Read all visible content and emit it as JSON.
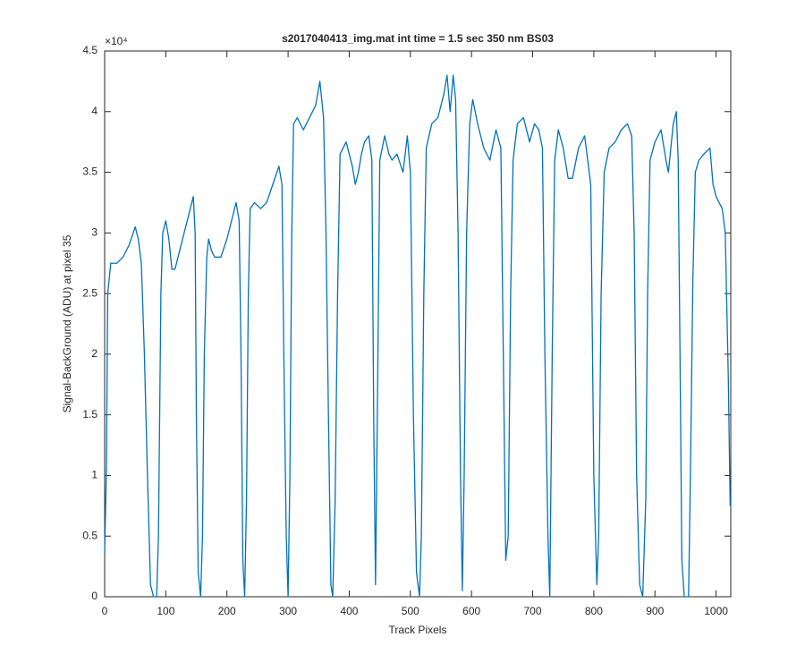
{
  "chart_data": {
    "type": "line",
    "title": "s2017040413_img.mat int time = 1.5 sec  350 nm BS03",
    "xlabel": "Track Pixels",
    "ylabel": "Signal-BackGround (ADU) at pixel 35",
    "y_exponent_label": "×10⁴",
    "xlim": [
      0,
      1024
    ],
    "ylim": [
      0,
      45000
    ],
    "xticks": [
      0,
      100,
      200,
      300,
      400,
      500,
      600,
      700,
      800,
      900,
      1000
    ],
    "yticks": [
      0,
      {
        "value": 5000,
        "label": "0.5"
      },
      {
        "value": 10000,
        "label": "1"
      },
      {
        "value": 15000,
        "label": "1.5"
      },
      {
        "value": 20000,
        "label": "2"
      },
      {
        "value": 25000,
        "label": "2.5"
      },
      {
        "value": 30000,
        "label": "3"
      },
      {
        "value": 35000,
        "label": "3.5"
      },
      {
        "value": 40000,
        "label": "4"
      },
      {
        "value": 45000,
        "label": "4.5"
      }
    ],
    "grid": false,
    "series": [
      {
        "color": "#0072bd",
        "x": [
          0,
          3,
          5,
          10,
          20,
          30,
          40,
          50,
          55,
          60,
          65,
          70,
          75,
          80,
          85,
          88,
          92,
          95,
          100,
          105,
          110,
          115,
          120,
          130,
          140,
          145,
          148,
          150,
          153,
          157,
          160,
          163,
          167,
          170,
          175,
          180,
          190,
          200,
          210,
          215,
          220,
          223,
          226,
          229,
          232,
          235,
          238,
          245,
          255,
          265,
          275,
          285,
          290,
          293,
          297,
          300,
          303,
          306,
          309,
          315,
          325,
          335,
          345,
          352,
          358,
          362,
          366,
          370,
          373,
          377,
          381,
          385,
          395,
          405,
          410,
          415,
          420,
          425,
          432,
          437,
          440,
          443,
          446,
          450,
          458,
          465,
          470,
          478,
          488,
          495,
          500,
          505,
          510,
          515,
          518,
          522,
          526,
          535,
          545,
          555,
          560,
          565,
          570,
          574,
          578,
          582,
          585,
          588,
          592,
          597,
          602,
          610,
          620,
          630,
          640,
          648,
          652,
          656,
          660,
          664,
          668,
          675,
          685,
          695,
          703,
          710,
          716,
          720,
          725,
          728,
          732,
          736,
          742,
          750,
          758,
          765,
          775,
          785,
          795,
          800,
          805,
          808,
          812,
          817,
          825,
          835,
          845,
          855,
          862,
          866,
          870,
          875,
          880,
          885,
          888,
          892,
          900,
          910,
          918,
          922,
          930,
          935,
          938,
          941,
          944,
          948,
          955,
          958,
          962,
          966,
          972,
          980,
          990,
          995,
          1000,
          1005,
          1010,
          1015,
          1020,
          1023
        ],
        "values": [
          3500,
          11000,
          25000,
          27500,
          27500,
          28000,
          29000,
          30500,
          29500,
          27500,
          20000,
          10000,
          1000,
          0,
          0,
          5000,
          25000,
          30000,
          31000,
          29500,
          27000,
          27000,
          28000,
          30000,
          32000,
          33000,
          30000,
          15000,
          2000,
          0,
          5000,
          20000,
          28000,
          29500,
          28500,
          28000,
          28000,
          29500,
          31500,
          32500,
          31000,
          20000,
          3000,
          0,
          8000,
          25000,
          32000,
          32500,
          32000,
          32500,
          34000,
          35500,
          34000,
          20000,
          5000,
          0,
          10000,
          30000,
          39000,
          39500,
          38500,
          39500,
          40500,
          42500,
          39500,
          30000,
          15000,
          1000,
          0,
          8000,
          25000,
          36500,
          37500,
          35500,
          34000,
          35000,
          36500,
          37500,
          38000,
          36000,
          15000,
          1000,
          15000,
          36000,
          38000,
          36500,
          36000,
          36500,
          35000,
          38000,
          35000,
          15000,
          2000,
          0,
          5000,
          25000,
          37000,
          39000,
          39500,
          41500,
          43000,
          40000,
          43000,
          41000,
          30000,
          10000,
          500,
          10000,
          30000,
          39000,
          41000,
          39000,
          37000,
          36000,
          38500,
          37000,
          20000,
          3000,
          5000,
          25000,
          36000,
          39000,
          39500,
          37500,
          39000,
          38500,
          37000,
          20000,
          5000,
          0,
          20000,
          36000,
          38500,
          37000,
          34500,
          34500,
          37000,
          38000,
          34000,
          10000,
          1000,
          5000,
          25000,
          35000,
          37000,
          37500,
          38500,
          39000,
          38000,
          30000,
          10000,
          1000,
          0,
          8000,
          25000,
          36000,
          37500,
          38500,
          36000,
          35000,
          39000,
          40000,
          36000,
          20000,
          3000,
          0,
          0,
          10000,
          26000,
          35000,
          36000,
          36500,
          37000,
          34000,
          33000,
          32500,
          32000,
          30000,
          18000,
          7500
        ]
      }
    ]
  }
}
